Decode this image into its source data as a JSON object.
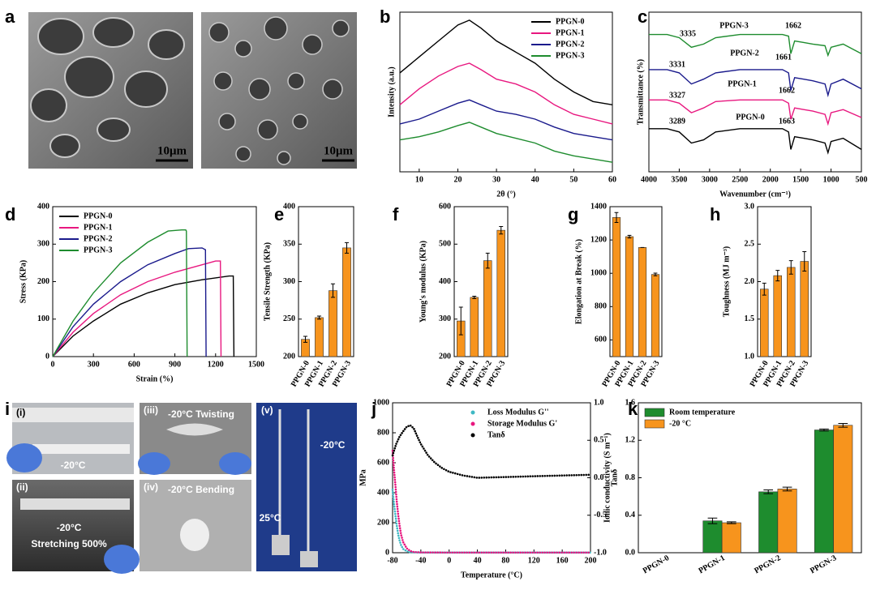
{
  "images": [
    {
      "panel": "a",
      "scale_bars": [
        "10μm",
        "10μm"
      ]
    },
    {
      "panel": "i",
      "photos": [
        {
          "tag": "(i)",
          "captions": [
            "-20°C"
          ]
        },
        {
          "tag": "(ii)",
          "captions": [
            "-20°C",
            "Stretching 500%"
          ]
        },
        {
          "tag": "(iii)",
          "captions": [
            "-20°C Twisting"
          ]
        },
        {
          "tag": "(iv)",
          "captions": [
            "-20°C Bending"
          ]
        },
        {
          "tag": "(v)",
          "captions": [
            "-20°C",
            "25°C"
          ]
        }
      ]
    }
  ],
  "chart_data": [
    {
      "panel": "b",
      "type": "line",
      "xlabel": "2θ (°)",
      "ylabel": "Intensity (a.u.)",
      "xlim": [
        5,
        60
      ],
      "xticks": [
        10,
        20,
        30,
        40,
        50,
        60
      ],
      "ylim": [
        0,
        100
      ],
      "legend": "upper right",
      "x": [
        5,
        10,
        15,
        20,
        23,
        26,
        30,
        35,
        40,
        45,
        50,
        55,
        60
      ],
      "series": [
        {
          "name": "PPGN-0",
          "color": "#000000",
          "values": [
            62,
            72,
            82,
            92,
            95,
            90,
            82,
            75,
            68,
            58,
            50,
            44,
            42
          ]
        },
        {
          "name": "PPGN-1",
          "color": "#e8177f",
          "values": [
            42,
            52,
            60,
            66,
            68,
            64,
            58,
            55,
            50,
            42,
            36,
            33,
            30
          ]
        },
        {
          "name": "PPGN-2",
          "color": "#1a1a8c",
          "values": [
            30,
            33,
            38,
            43,
            45,
            42,
            38,
            36,
            33,
            28,
            24,
            22,
            20
          ]
        },
        {
          "name": "PPGN-3",
          "color": "#1e8c2e",
          "values": [
            20,
            22,
            25,
            29,
            31,
            28,
            24,
            21,
            18,
            13,
            10,
            8,
            6
          ]
        }
      ]
    },
    {
      "panel": "c",
      "type": "line",
      "xlabel": "Wavenumber (cm⁻¹)",
      "ylabel": "Transmittance (%)",
      "xlim": [
        4000,
        500
      ],
      "xticks": [
        4000,
        3500,
        3000,
        2500,
        2000,
        1500,
        1000,
        500
      ],
      "ylim": [
        0,
        100
      ],
      "annotations": [
        "PPGN-3",
        "3335",
        "1662",
        "PPGN-2",
        "3331",
        "1661",
        "PPGN-1",
        "3327",
        "1662",
        "PPGN-0",
        "3289",
        "1663"
      ],
      "x": [
        4000,
        3700,
        3500,
        3300,
        3100,
        2900,
        2500,
        2000,
        1800,
        1700,
        1662,
        1600,
        1450,
        1300,
        1100,
        1050,
        1000,
        800,
        500
      ],
      "series": [
        {
          "name": "PPGN-3",
          "color": "#1e8c2e",
          "values": [
            86,
            86,
            84,
            78,
            80,
            84,
            86,
            86,
            86,
            85,
            74,
            82,
            81,
            80,
            79,
            73,
            78,
            80,
            74
          ]
        },
        {
          "name": "PPGN-2",
          "color": "#1a1a8c",
          "values": [
            64,
            64,
            62,
            55,
            58,
            62,
            64,
            64,
            64,
            62,
            51,
            59,
            58,
            57,
            55,
            48,
            55,
            58,
            52
          ]
        },
        {
          "name": "PPGN-1",
          "color": "#e8177f",
          "values": [
            45,
            45,
            43,
            37,
            40,
            44,
            45,
            45,
            45,
            43,
            33,
            40,
            39,
            38,
            36,
            30,
            37,
            39,
            34
          ]
        },
        {
          "name": "PPGN-0",
          "color": "#000000",
          "values": [
            27,
            27,
            25,
            18,
            20,
            25,
            27,
            27,
            27,
            25,
            14,
            22,
            21,
            20,
            18,
            12,
            19,
            21,
            14
          ]
        }
      ]
    },
    {
      "panel": "d",
      "type": "line",
      "xlabel": "Strain (%)",
      "ylabel": "Stress (KPa)",
      "xlim": [
        0,
        1500
      ],
      "xticks": [
        0,
        300,
        600,
        900,
        1200,
        1500
      ],
      "ylim": [
        0,
        400
      ],
      "yticks": [
        0,
        100,
        200,
        300,
        400
      ],
      "legend": "upper left",
      "series": [
        {
          "name": "PPGN-0",
          "color": "#000000",
          "x": [
            0,
            150,
            300,
            500,
            700,
            900,
            1100,
            1300,
            1330,
            1335
          ],
          "values": [
            0,
            55,
            95,
            140,
            170,
            192,
            205,
            215,
            215,
            0
          ]
        },
        {
          "name": "PPGN-1",
          "color": "#e8177f",
          "x": [
            0,
            150,
            300,
            500,
            700,
            900,
            1100,
            1200,
            1235,
            1240
          ],
          "values": [
            0,
            65,
            115,
            165,
            200,
            225,
            245,
            255,
            255,
            0
          ]
        },
        {
          "name": "PPGN-2",
          "color": "#1a1a8c",
          "x": [
            0,
            150,
            300,
            500,
            700,
            900,
            1000,
            1100,
            1125,
            1130
          ],
          "values": [
            0,
            80,
            140,
            200,
            245,
            275,
            288,
            290,
            285,
            0
          ]
        },
        {
          "name": "PPGN-3",
          "color": "#1e8c2e",
          "x": [
            0,
            150,
            300,
            500,
            700,
            850,
            950,
            980,
            985,
            990
          ],
          "values": [
            0,
            95,
            170,
            250,
            305,
            335,
            338,
            338,
            335,
            0
          ]
        }
      ]
    },
    {
      "panel": "e",
      "type": "bar",
      "ylabel": "Tensile Strength (KPa)",
      "categories": [
        "PPGN-0",
        "PPGN-1",
        "PPGN-2",
        "PPGN-3"
      ],
      "values": [
        223,
        252,
        288,
        345
      ],
      "errors": [
        4,
        2,
        9,
        7
      ],
      "color": "#f7941d",
      "ylim": [
        200,
        400
      ],
      "yticks": [
        200,
        250,
        300,
        350,
        400
      ]
    },
    {
      "panel": "f",
      "type": "bar",
      "ylabel": "Young's modulus (KPa)",
      "categories": [
        "PPGN-0",
        "PPGN-1",
        "PPGN-2",
        "PPGN-3"
      ],
      "values": [
        295,
        358,
        456,
        537
      ],
      "errors": [
        37,
        3,
        20,
        10
      ],
      "color": "#f7941d",
      "ylim": [
        200,
        600
      ],
      "yticks": [
        200,
        300,
        400,
        500,
        600
      ]
    },
    {
      "panel": "g",
      "type": "bar",
      "ylabel": "Elongation at Break (%)",
      "categories": [
        "PPGN-0",
        "PPGN-1",
        "PPGN-2",
        "PPGN-3"
      ],
      "values": [
        1335,
        1220,
        1155,
        993
      ],
      "errors": [
        30,
        8,
        0,
        8
      ],
      "color": "#f7941d",
      "ylim": [
        500,
        1400
      ],
      "yticks": [
        600,
        800,
        1000,
        1200,
        1400
      ]
    },
    {
      "panel": "h",
      "type": "bar",
      "ylabel": "Toughness (MJ m⁻³)",
      "categories": [
        "PPGN-0",
        "PPGN-1",
        "PPGN-2",
        "PPGN-3"
      ],
      "values": [
        1.9,
        2.08,
        2.19,
        2.27
      ],
      "errors": [
        0.08,
        0.07,
        0.09,
        0.13
      ],
      "color": "#f7941d",
      "ylim": [
        1,
        3
      ],
      "yticks": [
        {
          "value": 1,
          "label": "1.0"
        },
        {
          "value": 1.5,
          "label": "1.5"
        },
        {
          "value": 2,
          "label": "2.0"
        },
        {
          "value": 2.5,
          "label": "2.5"
        },
        {
          "value": 3,
          "label": "3.0"
        }
      ]
    },
    {
      "panel": "j",
      "type": "line",
      "xlabel": "Temperature (°C)",
      "ylabel": "MPa",
      "y2label": "Tanδ",
      "xlim": [
        -80,
        200
      ],
      "xticks": [
        -80,
        -40,
        0,
        40,
        80,
        120,
        160,
        200
      ],
      "ylim": [
        0,
        1000
      ],
      "yticks": [
        0,
        200,
        400,
        600,
        800,
        1000
      ],
      "y2lim": [
        -1,
        1
      ],
      "y2ticks": [
        {
          "value": -1,
          "label": "-1.0"
        },
        {
          "value": -0.5,
          "label": "-0.5"
        },
        {
          "value": 0,
          "label": "0.0"
        },
        {
          "value": 0.5,
          "label": "0.5"
        },
        {
          "value": 1,
          "label": "1.0"
        }
      ],
      "legend": "upper center",
      "linestyle": "dotted",
      "series": [
        {
          "name": "Loss Modulus G''",
          "color": "#3fb8c4",
          "x": [
            -80,
            -78,
            -76,
            -74,
            -72,
            -70,
            -68,
            -65,
            -60,
            -55,
            -50,
            -40,
            0,
            100,
            200
          ],
          "values": [
            420,
            330,
            250,
            180,
            120,
            80,
            50,
            25,
            10,
            4,
            2,
            1,
            1,
            1,
            1
          ]
        },
        {
          "name": "Storage Modulus G'",
          "color": "#e8177f",
          "x": [
            -80,
            -78,
            -76,
            -74,
            -72,
            -70,
            -68,
            -65,
            -60,
            -55,
            -50,
            -40,
            0,
            100,
            200
          ],
          "values": [
            680,
            560,
            450,
            340,
            250,
            180,
            120,
            70,
            30,
            12,
            5,
            2,
            1,
            1,
            1
          ]
        },
        {
          "name": "Tanδ",
          "color": "#000000",
          "axis": "y2",
          "x": [
            -80,
            -75,
            -70,
            -65,
            -60,
            -55,
            -50,
            -45,
            -40,
            -30,
            -20,
            -10,
            0,
            20,
            40,
            80,
            120,
            160,
            200
          ],
          "values": [
            0.3,
            0.45,
            0.55,
            0.62,
            0.68,
            0.7,
            0.66,
            0.55,
            0.45,
            0.3,
            0.2,
            0.13,
            0.08,
            0.03,
            0.0,
            0.01,
            0.02,
            0.03,
            0.04
          ]
        }
      ]
    },
    {
      "panel": "k",
      "type": "bar",
      "ylabel": "Ionic conductivity (S m⁻¹)",
      "categories": [
        "PPGN-0",
        "PPGN-1",
        "PPGN-2",
        "PPGN-3"
      ],
      "ylim": [
        0,
        1.6
      ],
      "yticks": [
        {
          "value": 0,
          "label": "0.0"
        },
        {
          "value": 0.4,
          "label": "0.4"
        },
        {
          "value": 0.8,
          "label": "0.8"
        },
        {
          "value": 1.2,
          "label": "1.2"
        },
        {
          "value": 1.6,
          "label": "1.6"
        }
      ],
      "legend": "upper left",
      "series": [
        {
          "name": "Room temperature",
          "color": "#1e8c2e",
          "values": [
            null,
            0.34,
            0.65,
            1.31
          ],
          "errors": [
            null,
            0.03,
            0.02,
            0.01
          ]
        },
        {
          "name": "-20 °C",
          "color": "#f7941d",
          "values": [
            null,
            0.32,
            0.68,
            1.36
          ],
          "errors": [
            null,
            0.01,
            0.02,
            0.02
          ]
        }
      ]
    }
  ]
}
